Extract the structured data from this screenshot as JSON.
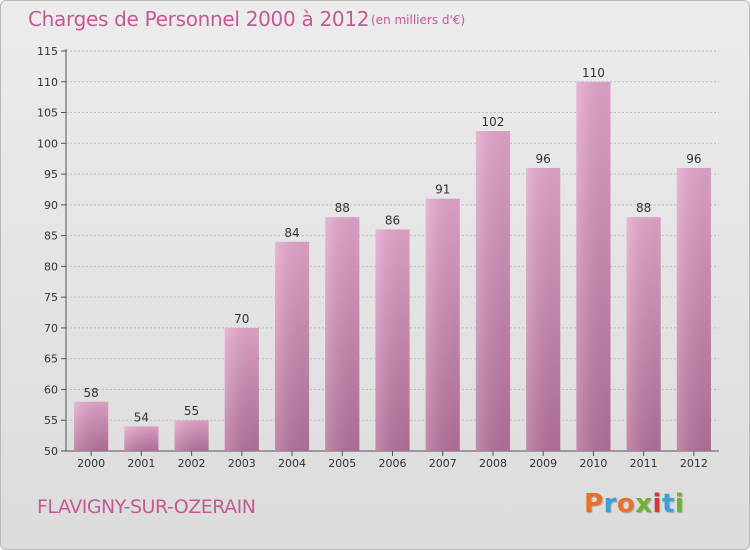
{
  "chart_data": {
    "type": "bar",
    "title": "Charges de Personnel 2000 à 2012",
    "subtitle": "(en milliers d'€)",
    "categories": [
      "2000",
      "2001",
      "2002",
      "2003",
      "2004",
      "2005",
      "2006",
      "2007",
      "2008",
      "2009",
      "2010",
      "2011",
      "2012"
    ],
    "values": [
      58,
      54,
      55,
      70,
      84,
      88,
      86,
      91,
      102,
      96,
      110,
      88,
      96
    ],
    "xlabel": "",
    "ylabel": "",
    "ylim": [
      50,
      115
    ],
    "yticks": [
      50,
      55,
      60,
      65,
      70,
      75,
      80,
      85,
      90,
      95,
      100,
      105,
      110,
      115
    ],
    "grid": true,
    "bar_color": "#d48fb8"
  },
  "footer": {
    "commune": "FLAVIGNY-SUR-OZERAIN",
    "logo_letters": [
      "P",
      "r",
      "o",
      "x",
      "i",
      "t",
      "i"
    ],
    "logo_colors": [
      "#e8702a",
      "#3aa0d8",
      "#e8702a",
      "#6ab42e",
      "#d23a3a",
      "#3aa0d8",
      "#6ab42e"
    ]
  },
  "colors": {
    "accent": "#c45a95"
  }
}
